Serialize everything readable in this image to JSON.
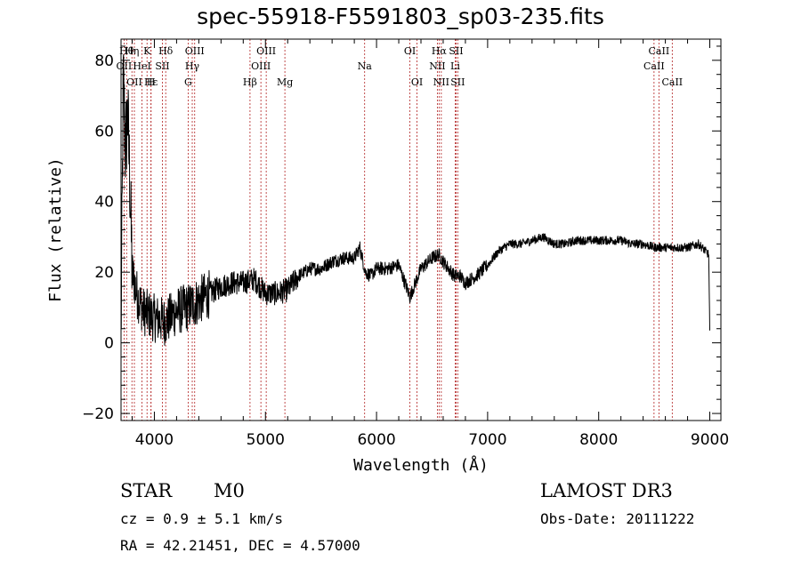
{
  "chart_data": {
    "type": "line",
    "title": "spec-55918-F5591803_sp03-235.fits",
    "xlabel": "Wavelength (Å)",
    "ylabel": "Flux (relative)",
    "xlim": [
      3700,
      9100
    ],
    "ylim": [
      -22,
      86
    ],
    "xticks": [
      4000,
      5000,
      6000,
      7000,
      8000,
      9000
    ],
    "xtick_labels": [
      "4000",
      "5000",
      "6000",
      "7000",
      "8000",
      "9000"
    ],
    "yticks": [
      -20,
      0,
      20,
      40,
      60,
      80
    ],
    "ytick_labels": [
      "−20",
      "0",
      "20",
      "40",
      "60",
      "80"
    ],
    "series": [
      {
        "name": "spectrum",
        "anchors": [
          [
            3700,
            0
          ],
          [
            3720,
            75
          ],
          [
            3740,
            55
          ],
          [
            3760,
            65
          ],
          [
            3780,
            45
          ],
          [
            3800,
            20
          ],
          [
            3850,
            13
          ],
          [
            3900,
            9
          ],
          [
            4000,
            7
          ],
          [
            4100,
            6
          ],
          [
            4200,
            9
          ],
          [
            4300,
            10
          ],
          [
            4400,
            12
          ],
          [
            4500,
            14
          ],
          [
            4600,
            16
          ],
          [
            4700,
            17
          ],
          [
            4800,
            17
          ],
          [
            4900,
            18
          ],
          [
            4950,
            16
          ],
          [
            5000,
            14
          ],
          [
            5100,
            14
          ],
          [
            5200,
            15
          ],
          [
            5300,
            19
          ],
          [
            5400,
            21
          ],
          [
            5500,
            21
          ],
          [
            5600,
            23
          ],
          [
            5700,
            24
          ],
          [
            5800,
            24
          ],
          [
            5850,
            27
          ],
          [
            5900,
            20
          ],
          [
            5950,
            19
          ],
          [
            6000,
            21
          ],
          [
            6100,
            21
          ],
          [
            6200,
            22
          ],
          [
            6300,
            13
          ],
          [
            6350,
            17
          ],
          [
            6400,
            21
          ],
          [
            6500,
            24
          ],
          [
            6560,
            25
          ],
          [
            6600,
            23
          ],
          [
            6700,
            19
          ],
          [
            6750,
            19
          ],
          [
            6800,
            17
          ],
          [
            6900,
            19
          ],
          [
            7000,
            22
          ],
          [
            7050,
            24
          ],
          [
            7100,
            26
          ],
          [
            7200,
            28
          ],
          [
            7300,
            28
          ],
          [
            7400,
            29
          ],
          [
            7500,
            30
          ],
          [
            7600,
            28
          ],
          [
            7700,
            28
          ],
          [
            7800,
            29
          ],
          [
            7900,
            29
          ],
          [
            8000,
            29
          ],
          [
            8100,
            29
          ],
          [
            8200,
            29
          ],
          [
            8300,
            28
          ],
          [
            8400,
            28
          ],
          [
            8500,
            27
          ],
          [
            8600,
            27
          ],
          [
            8700,
            27
          ],
          [
            8800,
            27
          ],
          [
            8900,
            28
          ],
          [
            8990,
            25
          ],
          [
            9000,
            3
          ]
        ]
      }
    ],
    "lines": [
      {
        "wl": 3727,
        "labels": [
          "OII"
        ],
        "tier": 1
      },
      {
        "wl": 3750,
        "labels": [
          "Hθ"
        ],
        "tier": 0
      },
      {
        "wl": 3798,
        "labels": [
          "Hη"
        ],
        "tier": 0
      },
      {
        "wl": 3820,
        "labels": [
          "OII"
        ],
        "tier": 2
      },
      {
        "wl": 3889,
        "labels": [
          "HeI"
        ],
        "tier": 1
      },
      {
        "wl": 3934,
        "labels": [
          "K"
        ],
        "tier": 0
      },
      {
        "wl": 3970,
        "labels": [
          "H"
        ],
        "tier": 2
      },
      {
        "wl": 3970,
        "labels": [
          "Hε"
        ],
        "tier": 2
      },
      {
        "wl": 4072,
        "labels": [
          "SII"
        ],
        "tier": 1
      },
      {
        "wl": 4102,
        "labels": [
          "Hδ"
        ],
        "tier": 0
      },
      {
        "wl": 4304,
        "labels": [
          "G"
        ],
        "tier": 2
      },
      {
        "wl": 4341,
        "labels": [
          "Hγ"
        ],
        "tier": 1
      },
      {
        "wl": 4363,
        "labels": [
          "OIII"
        ],
        "tier": 0
      },
      {
        "wl": 4861,
        "labels": [
          "Hβ"
        ],
        "tier": 2
      },
      {
        "wl": 4959,
        "labels": [
          "OIII"
        ],
        "tier": 1
      },
      {
        "wl": 5007,
        "labels": [
          "OIII"
        ],
        "tier": 0
      },
      {
        "wl": 5175,
        "labels": [
          "Mg"
        ],
        "tier": 2
      },
      {
        "wl": 5893,
        "labels": [
          "Na"
        ],
        "tier": 1
      },
      {
        "wl": 6300,
        "labels": [
          "OI"
        ],
        "tier": 0
      },
      {
        "wl": 6364,
        "labels": [
          "OI"
        ],
        "tier": 2
      },
      {
        "wl": 6548,
        "labels": [
          "NII"
        ],
        "tier": 1
      },
      {
        "wl": 6563,
        "labels": [
          "Hα"
        ],
        "tier": 0
      },
      {
        "wl": 6583,
        "labels": [
          "NII"
        ],
        "tier": 2
      },
      {
        "wl": 6708,
        "labels": [
          "Li"
        ],
        "tier": 1
      },
      {
        "wl": 6716,
        "labels": [
          "SII"
        ],
        "tier": 0
      },
      {
        "wl": 6731,
        "labels": [
          "SII"
        ],
        "tier": 2
      },
      {
        "wl": 8498,
        "labels": [
          "CaII"
        ],
        "tier": 1
      },
      {
        "wl": 8542,
        "labels": [
          "CaII"
        ],
        "tier": 0
      },
      {
        "wl": 8662,
        "labels": [
          "CaII"
        ],
        "tier": 2
      }
    ],
    "line_color": "#b22222",
    "grid": false
  },
  "info": {
    "class": "STAR",
    "subclass": "M0",
    "survey": "LAMOST DR3",
    "cz": "cz = 0.9 ± 5.1 km/s",
    "obs_date": "Obs-Date: 20111222",
    "coords": "RA =  42.21451, DEC =   4.57000"
  }
}
